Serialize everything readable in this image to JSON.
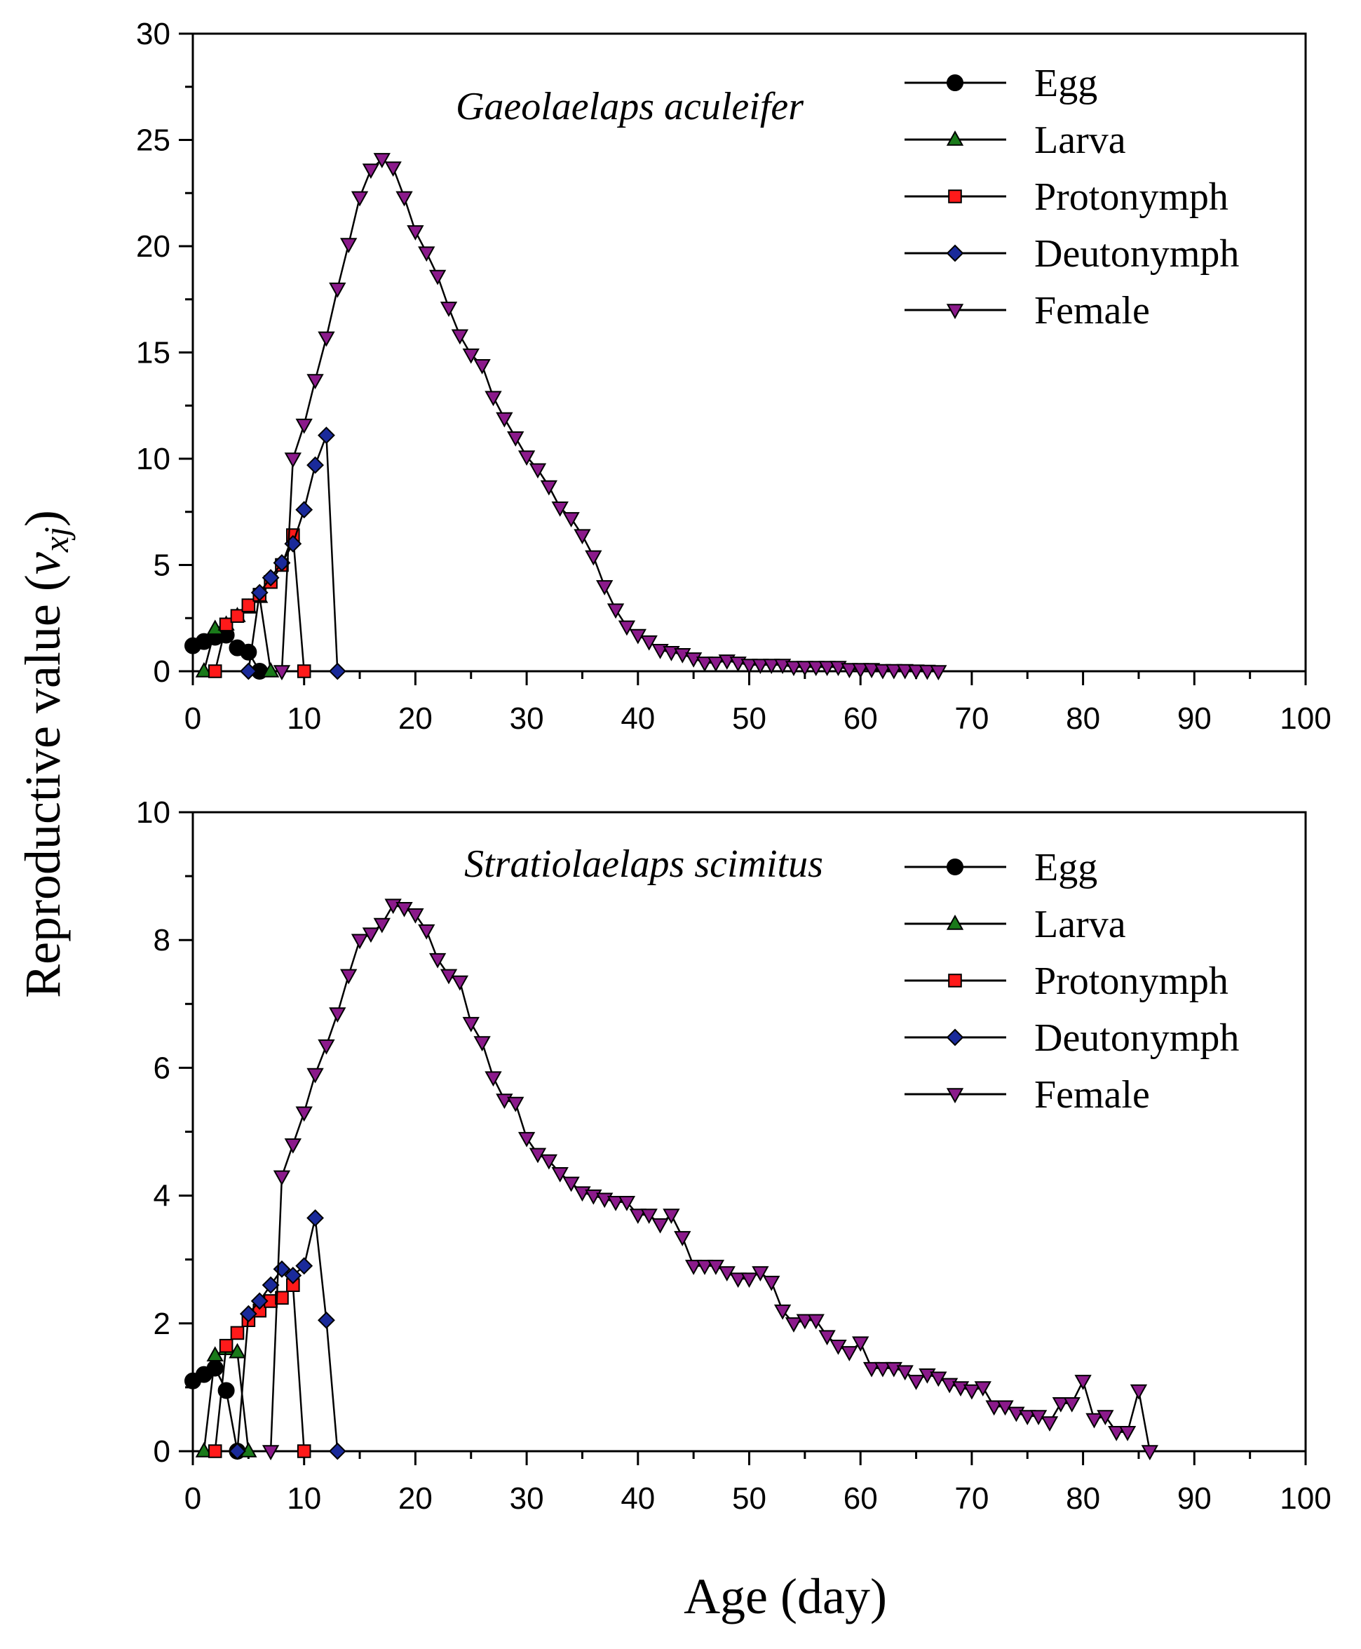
{
  "figure": {
    "ylabel_main": "Reproductive value (",
    "ylabel_var": "v",
    "ylabel_sub": "xj",
    "ylabel_close": ")",
    "xlabel": "Age (day)"
  },
  "colors": {
    "Egg": "#000000",
    "Larva": "#1a7a1a",
    "Protonymph": "#ff1a1a",
    "Deutonymph": "#1a2a9a",
    "Female": "#8b1a8b"
  },
  "chart_data": [
    {
      "type": "line",
      "title": "Gaeolaelaps aculeifer",
      "xlabel": "Age (day)",
      "ylabel": "Reproductive value (vxj)",
      "xlim": [
        0,
        100
      ],
      "ylim": [
        0,
        30
      ],
      "xticks": [
        0,
        10,
        20,
        30,
        40,
        50,
        60,
        70,
        80,
        90,
        100
      ],
      "yticks": [
        0,
        5,
        10,
        15,
        20,
        25,
        30
      ],
      "legend": [
        "Egg",
        "Larva",
        "Protonymph",
        "Deutonymph",
        "Female"
      ],
      "series": [
        {
          "name": "Egg",
          "marker": "circle",
          "x": [
            0,
            1,
            2,
            3,
            4,
            5,
            6
          ],
          "y": [
            1.2,
            1.4,
            1.6,
            1.7,
            1.1,
            0.9,
            0
          ]
        },
        {
          "name": "Larva",
          "marker": "triangle-up",
          "x": [
            1,
            2,
            3,
            4,
            5,
            6,
            7
          ],
          "y": [
            0,
            2.0,
            2.2,
            2.6,
            3.0,
            3.5,
            0
          ]
        },
        {
          "name": "Protonymph",
          "marker": "square",
          "x": [
            2,
            3,
            4,
            5,
            6,
            7,
            8,
            9,
            10
          ],
          "y": [
            0,
            2.2,
            2.6,
            3.1,
            3.6,
            4.2,
            5.0,
            6.4,
            0
          ]
        },
        {
          "name": "Deutonymph",
          "marker": "diamond",
          "x": [
            5,
            6,
            7,
            8,
            9,
            10,
            11,
            12,
            13
          ],
          "y": [
            0,
            3.7,
            4.4,
            5.1,
            6.0,
            7.6,
            9.7,
            11.1,
            0
          ]
        },
        {
          "name": "Female",
          "marker": "triangle-down",
          "x": [
            8,
            9,
            10,
            11,
            12,
            13,
            14,
            15,
            16,
            17,
            18,
            19,
            20,
            21,
            22,
            23,
            24,
            25,
            26,
            27,
            28,
            29,
            30,
            31,
            32,
            33,
            34,
            35,
            36,
            37,
            38,
            39,
            40,
            41,
            42,
            43,
            44,
            45,
            46,
            47,
            48,
            49,
            50,
            51,
            52,
            53,
            54,
            55,
            56,
            57,
            58,
            59,
            60,
            61,
            62,
            63,
            64,
            65,
            66,
            67
          ],
          "y": [
            0,
            10.0,
            11.6,
            13.7,
            15.7,
            18.0,
            20.1,
            22.3,
            23.6,
            24.1,
            23.7,
            22.3,
            20.7,
            19.7,
            18.6,
            17.1,
            15.8,
            14.9,
            14.4,
            12.9,
            11.9,
            11.0,
            10.1,
            9.5,
            8.7,
            7.7,
            7.2,
            6.4,
            5.4,
            4.0,
            2.9,
            2.1,
            1.7,
            1.4,
            1.0,
            0.9,
            0.8,
            0.6,
            0.4,
            0.4,
            0.5,
            0.4,
            0.3,
            0.3,
            0.3,
            0.3,
            0.2,
            0.2,
            0.2,
            0.2,
            0.2,
            0.1,
            0.1,
            0.1,
            0.05,
            0.05,
            0.05,
            0.03,
            0.02,
            0.0
          ]
        }
      ]
    },
    {
      "type": "line",
      "title": "Stratiolaelaps scimitus",
      "xlabel": "Age (day)",
      "ylabel": "Reproductive value (vxj)",
      "xlim": [
        0,
        100
      ],
      "ylim": [
        0,
        10
      ],
      "xticks": [
        0,
        10,
        20,
        30,
        40,
        50,
        60,
        70,
        80,
        90,
        100
      ],
      "yticks": [
        0,
        2,
        4,
        6,
        8,
        10
      ],
      "legend": [
        "Egg",
        "Larva",
        "Protonymph",
        "Deutonymph",
        "Female"
      ],
      "series": [
        {
          "name": "Egg",
          "marker": "circle",
          "x": [
            0,
            1,
            2,
            3,
            4
          ],
          "y": [
            1.1,
            1.2,
            1.3,
            0.95,
            0
          ]
        },
        {
          "name": "Larva",
          "marker": "triangle-up",
          "x": [
            1,
            2,
            3,
            4,
            5
          ],
          "y": [
            0,
            1.5,
            1.6,
            1.55,
            0
          ]
        },
        {
          "name": "Protonymph",
          "marker": "square",
          "x": [
            2,
            3,
            4,
            5,
            6,
            7,
            8,
            9,
            10
          ],
          "y": [
            0,
            1.65,
            1.85,
            2.05,
            2.2,
            2.35,
            2.4,
            2.6,
            0
          ]
        },
        {
          "name": "Deutonymph",
          "marker": "diamond",
          "x": [
            4,
            5,
            6,
            7,
            8,
            9,
            10,
            11,
            12,
            13
          ],
          "y": [
            0,
            2.15,
            2.35,
            2.6,
            2.85,
            2.75,
            2.9,
            3.65,
            2.05,
            0
          ]
        },
        {
          "name": "Female",
          "marker": "triangle-down",
          "x": [
            7,
            8,
            9,
            10,
            11,
            12,
            13,
            14,
            15,
            16,
            17,
            18,
            19,
            20,
            21,
            22,
            23,
            24,
            25,
            26,
            27,
            28,
            29,
            30,
            31,
            32,
            33,
            34,
            35,
            36,
            37,
            38,
            39,
            40,
            41,
            42,
            43,
            44,
            45,
            46,
            47,
            48,
            49,
            50,
            51,
            52,
            53,
            54,
            55,
            56,
            57,
            58,
            59,
            60,
            61,
            62,
            63,
            64,
            65,
            66,
            67,
            68,
            69,
            70,
            71,
            72,
            73,
            74,
            75,
            76,
            77,
            78,
            79,
            80,
            81,
            82,
            83,
            84,
            85,
            86
          ],
          "y": [
            0,
            4.3,
            4.8,
            5.3,
            5.9,
            6.35,
            6.85,
            7.45,
            8.0,
            8.1,
            8.25,
            8.55,
            8.5,
            8.4,
            8.15,
            7.7,
            7.45,
            7.35,
            6.7,
            6.4,
            5.85,
            5.5,
            5.45,
            4.9,
            4.65,
            4.55,
            4.35,
            4.2,
            4.05,
            4.0,
            3.95,
            3.9,
            3.9,
            3.7,
            3.7,
            3.55,
            3.7,
            3.35,
            2.9,
            2.9,
            2.9,
            2.8,
            2.7,
            2.7,
            2.8,
            2.65,
            2.2,
            2.0,
            2.05,
            2.05,
            1.8,
            1.65,
            1.55,
            1.7,
            1.3,
            1.3,
            1.3,
            1.25,
            1.1,
            1.2,
            1.15,
            1.05,
            1.0,
            0.95,
            1.0,
            0.7,
            0.7,
            0.6,
            0.55,
            0.55,
            0.45,
            0.75,
            0.75,
            1.1,
            0.5,
            0.55,
            0.3,
            0.3,
            0.95,
            0.0
          ]
        }
      ]
    }
  ]
}
